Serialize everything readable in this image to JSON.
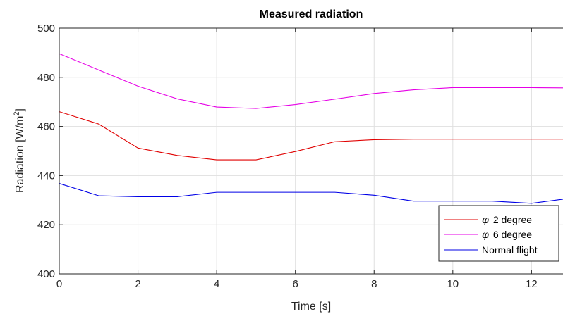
{
  "chart_data": {
    "type": "line",
    "title": "Measured radiation",
    "xlabel": "Time [s]",
    "ylabel_main": "Radiation [W/m",
    "ylabel_sup": "2",
    "ylabel_end": "]",
    "xlim": [
      0,
      12.8
    ],
    "ylim": [
      400,
      500
    ],
    "xticks": [
      0,
      2,
      4,
      6,
      8,
      10,
      12
    ],
    "yticks": [
      400,
      420,
      440,
      460,
      480,
      500
    ],
    "grid": true,
    "legend_position": "bottom-right",
    "series": [
      {
        "name_symbol": "φ",
        "name": "2 degree",
        "color": "#e00000",
        "x": [
          0,
          1,
          2,
          3,
          4,
          5,
          6,
          7,
          8,
          9,
          10,
          11,
          12,
          12.8
        ],
        "y": [
          466.0,
          461.0,
          451.2,
          448.2,
          446.4,
          446.4,
          449.8,
          453.8,
          454.6,
          454.8,
          454.8,
          454.8,
          454.8,
          454.8
        ]
      },
      {
        "name_symbol": "φ",
        "name": "6 degree",
        "color": "#e600e6",
        "x": [
          0,
          1,
          2,
          3,
          4,
          5,
          6,
          7,
          8,
          9,
          10,
          11,
          12,
          12.8
        ],
        "y": [
          489.6,
          483.0,
          476.4,
          471.2,
          467.9,
          467.3,
          468.9,
          471.1,
          473.4,
          474.9,
          475.8,
          475.8,
          475.8,
          475.7
        ]
      },
      {
        "name_symbol": "",
        "name": "Normal flight",
        "color": "#0000e6",
        "x": [
          0,
          1,
          2,
          3,
          4,
          5,
          6,
          7,
          8,
          9,
          10,
          11,
          12,
          12.8
        ],
        "y": [
          436.8,
          431.8,
          431.4,
          431.4,
          433.2,
          433.2,
          433.2,
          433.2,
          432.0,
          429.6,
          429.6,
          429.6,
          428.7,
          430.4
        ]
      }
    ]
  }
}
